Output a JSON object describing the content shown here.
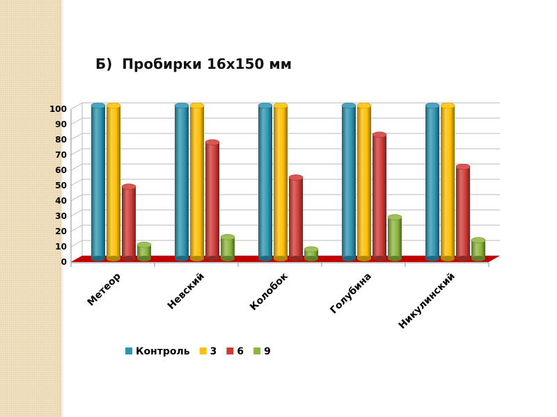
{
  "slide": {
    "title": "Б)  Пробирки 16х150 мм"
  },
  "colors": {
    "background": "#ffffff",
    "side_strip": "#f3e3c4",
    "floor": "#c00000",
    "gridline": "#b8b8b8"
  },
  "chart_data": {
    "type": "bar",
    "title": "Б)  Пробирки 16х150 мм",
    "xlabel": "",
    "ylabel": "",
    "ylim": [
      0,
      100
    ],
    "yticks": [
      0,
      10,
      20,
      30,
      40,
      50,
      60,
      70,
      80,
      90,
      100
    ],
    "grid": true,
    "style": "3d-cylinder",
    "legend_position": "bottom",
    "categories": [
      "Метеор",
      "Невский",
      "Колобок",
      "Голубина",
      "Никулинский"
    ],
    "series": [
      {
        "name": "Контроль",
        "color": "#2e94b2",
        "values": [
          100,
          100,
          100,
          100,
          100
        ]
      },
      {
        "name": "3",
        "color": "#ffc000",
        "values": [
          100,
          100,
          100,
          100,
          100
        ]
      },
      {
        "name": "6",
        "color": "#d03a35",
        "values": [
          47,
          76,
          53,
          81,
          60
        ]
      },
      {
        "name": "9",
        "color": "#8cb63c",
        "values": [
          9,
          14,
          6,
          27,
          12
        ]
      }
    ]
  }
}
